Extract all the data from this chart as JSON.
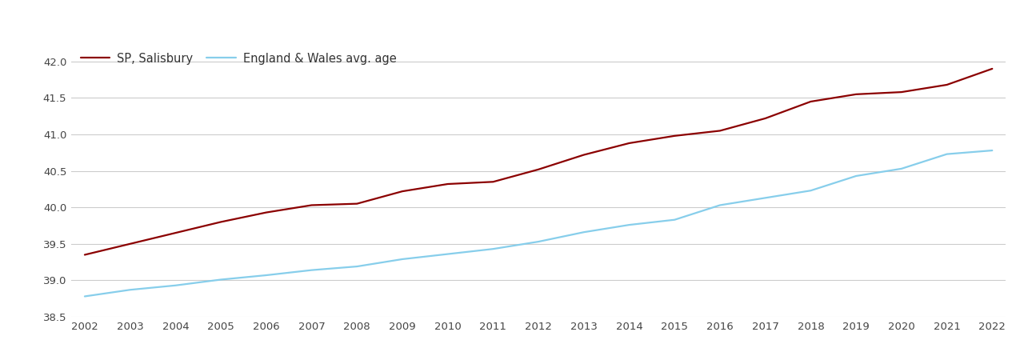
{
  "years": [
    2002,
    2003,
    2004,
    2005,
    2006,
    2007,
    2008,
    2009,
    2010,
    2011,
    2012,
    2013,
    2014,
    2015,
    2016,
    2017,
    2018,
    2019,
    2020,
    2021,
    2022
  ],
  "salisbury": [
    39.35,
    39.5,
    39.65,
    39.8,
    39.93,
    40.03,
    40.05,
    40.22,
    40.32,
    40.35,
    40.52,
    40.72,
    40.88,
    40.98,
    41.05,
    41.22,
    41.45,
    41.55,
    41.58,
    41.68,
    41.9
  ],
  "england_wales": [
    38.78,
    38.87,
    38.93,
    39.01,
    39.07,
    39.14,
    39.19,
    39.29,
    39.36,
    39.43,
    39.53,
    39.66,
    39.76,
    39.83,
    40.03,
    40.13,
    40.23,
    40.43,
    40.53,
    40.73,
    40.78
  ],
  "salisbury_color": "#8B0000",
  "england_wales_color": "#87CEEB",
  "legend_label_salisbury": "SP, Salisbury",
  "legend_label_ew": "England & Wales avg. age",
  "ylim_min": 38.5,
  "ylim_max": 42.25,
  "yticks": [
    38.5,
    39.0,
    39.5,
    40.0,
    40.5,
    41.0,
    41.5,
    42.0
  ],
  "background_color": "#ffffff",
  "grid_color": "#cccccc",
  "line_width": 1.6,
  "tick_fontsize": 9.5,
  "legend_fontsize": 10.5
}
